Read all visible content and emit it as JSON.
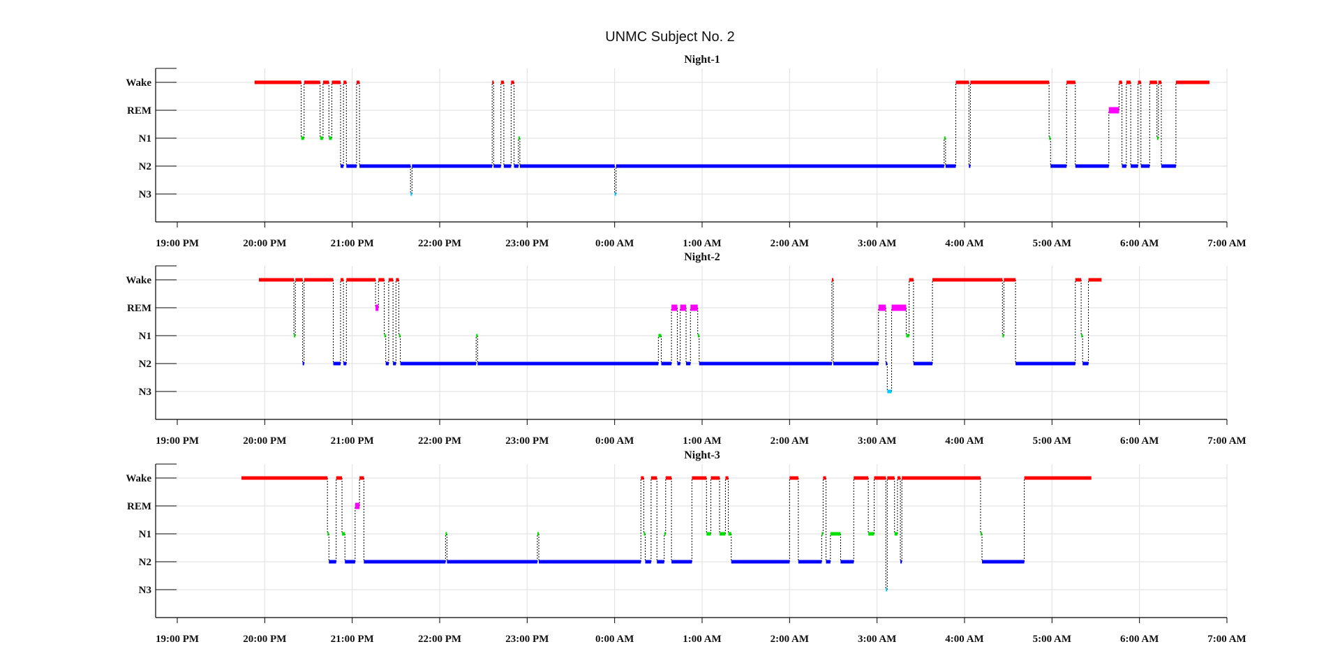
{
  "figure": {
    "title": "UNMC Subject No. 2"
  },
  "chart_data": [
    {
      "type": "line",
      "title": "Night-1",
      "y_categories": [
        "Wake",
        "REM",
        "N1",
        "N2",
        "N3"
      ],
      "x_ticks": [
        "19:00 PM",
        "20:00 PM",
        "21:00 PM",
        "22:00 PM",
        "23:00 PM",
        "0:00 AM",
        "1:00 AM",
        "2:00 AM",
        "3:00 AM",
        "4:00 AM",
        "5:00 AM",
        "6:00 AM",
        "7:00 AM"
      ],
      "x_range": [
        "19:00 PM",
        "7:00 AM"
      ],
      "grid": true,
      "colors": {
        "Wake": "#ff0000",
        "REM": "#ff00ff",
        "N1": "#00e000",
        "N2": "#0000ff",
        "N3": "#00c8ff",
        "transition": "#000000"
      },
      "segments": [
        {
          "stage": "Wake",
          "start": "19:53",
          "end": "20:25"
        },
        {
          "stage": "N1",
          "start": "20:25",
          "end": "20:27"
        },
        {
          "stage": "Wake",
          "start": "20:27",
          "end": "20:38"
        },
        {
          "stage": "N1",
          "start": "20:38",
          "end": "20:40"
        },
        {
          "stage": "Wake",
          "start": "20:40",
          "end": "20:44"
        },
        {
          "stage": "N1",
          "start": "20:44",
          "end": "20:46"
        },
        {
          "stage": "Wake",
          "start": "20:46",
          "end": "20:52"
        },
        {
          "stage": "N2",
          "start": "20:52",
          "end": "20:54"
        },
        {
          "stage": "Wake",
          "start": "20:54",
          "end": "20:56"
        },
        {
          "stage": "N2",
          "start": "20:56",
          "end": "21:03"
        },
        {
          "stage": "Wake",
          "start": "21:03",
          "end": "21:05"
        },
        {
          "stage": "N2",
          "start": "21:05",
          "end": "21:40"
        },
        {
          "stage": "N3",
          "start": "21:40",
          "end": "21:41"
        },
        {
          "stage": "N2",
          "start": "21:41",
          "end": "22:36"
        },
        {
          "stage": "Wake",
          "start": "22:36",
          "end": "22:37"
        },
        {
          "stage": "N2",
          "start": "22:37",
          "end": "22:42"
        },
        {
          "stage": "Wake",
          "start": "22:42",
          "end": "22:44"
        },
        {
          "stage": "N2",
          "start": "22:44",
          "end": "22:49"
        },
        {
          "stage": "Wake",
          "start": "22:49",
          "end": "22:51"
        },
        {
          "stage": "N2",
          "start": "22:51",
          "end": "22:54"
        },
        {
          "stage": "N1",
          "start": "22:54",
          "end": "22:55"
        },
        {
          "stage": "N2",
          "start": "22:55",
          "end": "00:00"
        },
        {
          "stage": "N3",
          "start": "00:00",
          "end": "00:01"
        },
        {
          "stage": "N2",
          "start": "00:01",
          "end": "03:46"
        },
        {
          "stage": "N1",
          "start": "03:46",
          "end": "03:47"
        },
        {
          "stage": "N2",
          "start": "03:47",
          "end": "03:54"
        },
        {
          "stage": "Wake",
          "start": "03:54",
          "end": "04:03"
        },
        {
          "stage": "N2",
          "start": "04:03",
          "end": "04:04"
        },
        {
          "stage": "Wake",
          "start": "04:04",
          "end": "04:58"
        },
        {
          "stage": "N1",
          "start": "04:58",
          "end": "04:59"
        },
        {
          "stage": "N2",
          "start": "04:59",
          "end": "05:10"
        },
        {
          "stage": "Wake",
          "start": "05:10",
          "end": "05:16"
        },
        {
          "stage": "N2",
          "start": "05:16",
          "end": "05:39"
        },
        {
          "stage": "REM",
          "start": "05:39",
          "end": "05:46"
        },
        {
          "stage": "Wake",
          "start": "05:46",
          "end": "05:48"
        },
        {
          "stage": "N2",
          "start": "05:48",
          "end": "05:51"
        },
        {
          "stage": "Wake",
          "start": "05:51",
          "end": "05:54"
        },
        {
          "stage": "N2",
          "start": "05:54",
          "end": "05:59"
        },
        {
          "stage": "Wake",
          "start": "05:59",
          "end": "06:01"
        },
        {
          "stage": "N2",
          "start": "06:01",
          "end": "06:07"
        },
        {
          "stage": "Wake",
          "start": "06:07",
          "end": "06:12"
        },
        {
          "stage": "N1",
          "start": "06:12",
          "end": "06:13"
        },
        {
          "stage": "Wake",
          "start": "06:13",
          "end": "06:15"
        },
        {
          "stage": "N2",
          "start": "06:15",
          "end": "06:25"
        },
        {
          "stage": "Wake",
          "start": "06:25",
          "end": "06:48"
        }
      ]
    },
    {
      "type": "line",
      "title": "Night-2",
      "y_categories": [
        "Wake",
        "REM",
        "N1",
        "N2",
        "N3"
      ],
      "x_ticks": [
        "19:00 PM",
        "20:00 PM",
        "21:00 PM",
        "22:00 PM",
        "23:00 PM",
        "0:00 AM",
        "1:00 AM",
        "2:00 AM",
        "3:00 AM",
        "4:00 AM",
        "5:00 AM",
        "6:00 AM",
        "7:00 AM"
      ],
      "x_range": [
        "19:00 PM",
        "7:00 AM"
      ],
      "grid": true,
      "colors": {
        "Wake": "#ff0000",
        "REM": "#ff00ff",
        "N1": "#00e000",
        "N2": "#0000ff",
        "N3": "#00c8ff",
        "transition": "#000000"
      },
      "segments": [
        {
          "stage": "Wake",
          "start": "19:56",
          "end": "20:20"
        },
        {
          "stage": "N1",
          "start": "20:20",
          "end": "20:21"
        },
        {
          "stage": "Wake",
          "start": "20:21",
          "end": "20:26"
        },
        {
          "stage": "N2",
          "start": "20:26",
          "end": "20:27"
        },
        {
          "stage": "Wake",
          "start": "20:27",
          "end": "20:47"
        },
        {
          "stage": "N2",
          "start": "20:47",
          "end": "20:52"
        },
        {
          "stage": "Wake",
          "start": "20:52",
          "end": "20:54"
        },
        {
          "stage": "N2",
          "start": "20:54",
          "end": "20:56"
        },
        {
          "stage": "Wake",
          "start": "20:56",
          "end": "21:16"
        },
        {
          "stage": "REM",
          "start": "21:16",
          "end": "21:18"
        },
        {
          "stage": "Wake",
          "start": "21:18",
          "end": "21:22"
        },
        {
          "stage": "N1",
          "start": "21:22",
          "end": "21:23"
        },
        {
          "stage": "N2",
          "start": "21:23",
          "end": "21:25"
        },
        {
          "stage": "Wake",
          "start": "21:25",
          "end": "21:28"
        },
        {
          "stage": "N2",
          "start": "21:28",
          "end": "21:30"
        },
        {
          "stage": "Wake",
          "start": "21:30",
          "end": "21:32"
        },
        {
          "stage": "N1",
          "start": "21:32",
          "end": "21:33"
        },
        {
          "stage": "N2",
          "start": "21:33",
          "end": "22:25"
        },
        {
          "stage": "N1",
          "start": "22:25",
          "end": "22:26"
        },
        {
          "stage": "N2",
          "start": "22:26",
          "end": "00:30"
        },
        {
          "stage": "N1",
          "start": "00:30",
          "end": "00:32"
        },
        {
          "stage": "N2",
          "start": "00:32",
          "end": "00:39"
        },
        {
          "stage": "REM",
          "start": "00:39",
          "end": "00:43"
        },
        {
          "stage": "N2",
          "start": "00:43",
          "end": "00:45"
        },
        {
          "stage": "REM",
          "start": "00:45",
          "end": "00:49"
        },
        {
          "stage": "N2",
          "start": "00:49",
          "end": "00:52"
        },
        {
          "stage": "REM",
          "start": "00:52",
          "end": "00:57"
        },
        {
          "stage": "N1",
          "start": "00:57",
          "end": "00:58"
        },
        {
          "stage": "N2",
          "start": "00:58",
          "end": "02:29"
        },
        {
          "stage": "Wake",
          "start": "02:29",
          "end": "02:30"
        },
        {
          "stage": "N2",
          "start": "02:30",
          "end": "03:01"
        },
        {
          "stage": "REM",
          "start": "03:01",
          "end": "03:06"
        },
        {
          "stage": "N2",
          "start": "03:06",
          "end": "03:07"
        },
        {
          "stage": "N3",
          "start": "03:07",
          "end": "03:10"
        },
        {
          "stage": "REM",
          "start": "03:10",
          "end": "03:20"
        },
        {
          "stage": "N1",
          "start": "03:20",
          "end": "03:22"
        },
        {
          "stage": "Wake",
          "start": "03:22",
          "end": "03:25"
        },
        {
          "stage": "N2",
          "start": "03:25",
          "end": "03:38"
        },
        {
          "stage": "Wake",
          "start": "03:38",
          "end": "04:26"
        },
        {
          "stage": "N1",
          "start": "04:26",
          "end": "04:27"
        },
        {
          "stage": "Wake",
          "start": "04:27",
          "end": "04:35"
        },
        {
          "stage": "N2",
          "start": "04:35",
          "end": "05:16"
        },
        {
          "stage": "Wake",
          "start": "05:16",
          "end": "05:20"
        },
        {
          "stage": "N1",
          "start": "05:20",
          "end": "05:21"
        },
        {
          "stage": "N2",
          "start": "05:21",
          "end": "05:25"
        },
        {
          "stage": "Wake",
          "start": "05:25",
          "end": "05:34"
        }
      ]
    },
    {
      "type": "line",
      "title": "Night-3",
      "y_categories": [
        "Wake",
        "REM",
        "N1",
        "N2",
        "N3"
      ],
      "x_ticks": [
        "19:00 PM",
        "20:00 PM",
        "21:00 PM",
        "22:00 PM",
        "23:00 PM",
        "0:00 AM",
        "1:00 AM",
        "2:00 AM",
        "3:00 AM",
        "4:00 AM",
        "5:00 AM",
        "6:00 AM",
        "7:00 AM"
      ],
      "x_range": [
        "19:00 PM",
        "7:00 AM"
      ],
      "grid": true,
      "colors": {
        "Wake": "#ff0000",
        "REM": "#ff00ff",
        "N1": "#00e000",
        "N2": "#0000ff",
        "N3": "#00c8ff",
        "transition": "#000000"
      },
      "segments": [
        {
          "stage": "Wake",
          "start": "19:44",
          "end": "20:43"
        },
        {
          "stage": "N1",
          "start": "20:43",
          "end": "20:44"
        },
        {
          "stage": "N2",
          "start": "20:44",
          "end": "20:49"
        },
        {
          "stage": "Wake",
          "start": "20:49",
          "end": "20:53"
        },
        {
          "stage": "N1",
          "start": "20:53",
          "end": "20:55"
        },
        {
          "stage": "N2",
          "start": "20:55",
          "end": "21:02"
        },
        {
          "stage": "REM",
          "start": "21:02",
          "end": "21:05"
        },
        {
          "stage": "Wake",
          "start": "21:05",
          "end": "21:08"
        },
        {
          "stage": "N2",
          "start": "21:08",
          "end": "22:04"
        },
        {
          "stage": "N1",
          "start": "22:04",
          "end": "22:05"
        },
        {
          "stage": "N2",
          "start": "22:05",
          "end": "23:07"
        },
        {
          "stage": "N1",
          "start": "23:07",
          "end": "23:08"
        },
        {
          "stage": "N2",
          "start": "23:08",
          "end": "00:18"
        },
        {
          "stage": "Wake",
          "start": "00:18",
          "end": "00:20"
        },
        {
          "stage": "N1",
          "start": "00:20",
          "end": "00:21"
        },
        {
          "stage": "N2",
          "start": "00:21",
          "end": "00:25"
        },
        {
          "stage": "Wake",
          "start": "00:25",
          "end": "00:29"
        },
        {
          "stage": "N2",
          "start": "00:29",
          "end": "00:34"
        },
        {
          "stage": "N1",
          "start": "00:34",
          "end": "00:35"
        },
        {
          "stage": "Wake",
          "start": "00:35",
          "end": "00:39"
        },
        {
          "stage": "N2",
          "start": "00:39",
          "end": "00:53"
        },
        {
          "stage": "Wake",
          "start": "00:53",
          "end": "01:03"
        },
        {
          "stage": "N1",
          "start": "01:03",
          "end": "01:06"
        },
        {
          "stage": "Wake",
          "start": "01:06",
          "end": "01:12"
        },
        {
          "stage": "N1",
          "start": "01:12",
          "end": "01:16"
        },
        {
          "stage": "Wake",
          "start": "01:16",
          "end": "01:18"
        },
        {
          "stage": "N1",
          "start": "01:18",
          "end": "01:20"
        },
        {
          "stage": "N2",
          "start": "01:20",
          "end": "02:00"
        },
        {
          "stage": "Wake",
          "start": "02:00",
          "end": "02:06"
        },
        {
          "stage": "N2",
          "start": "02:06",
          "end": "02:22"
        },
        {
          "stage": "N1",
          "start": "02:22",
          "end": "02:23"
        },
        {
          "stage": "Wake",
          "start": "02:23",
          "end": "02:25"
        },
        {
          "stage": "N2",
          "start": "02:25",
          "end": "02:28"
        },
        {
          "stage": "N1",
          "start": "02:28",
          "end": "02:35"
        },
        {
          "stage": "N2",
          "start": "02:35",
          "end": "02:44"
        },
        {
          "stage": "Wake",
          "start": "02:44",
          "end": "02:54"
        },
        {
          "stage": "N1",
          "start": "02:54",
          "end": "02:58"
        },
        {
          "stage": "Wake",
          "start": "02:58",
          "end": "03:06"
        },
        {
          "stage": "N3",
          "start": "03:06",
          "end": "03:07"
        },
        {
          "stage": "Wake",
          "start": "03:07",
          "end": "03:12"
        },
        {
          "stage": "N1",
          "start": "03:12",
          "end": "03:14"
        },
        {
          "stage": "Wake",
          "start": "03:14",
          "end": "03:16"
        },
        {
          "stage": "N2",
          "start": "03:16",
          "end": "03:17"
        },
        {
          "stage": "Wake",
          "start": "03:17",
          "end": "04:11"
        },
        {
          "stage": "N1",
          "start": "04:11",
          "end": "04:12"
        },
        {
          "stage": "N2",
          "start": "04:12",
          "end": "04:41"
        },
        {
          "stage": "Wake",
          "start": "04:41",
          "end": "05:27"
        }
      ]
    }
  ]
}
